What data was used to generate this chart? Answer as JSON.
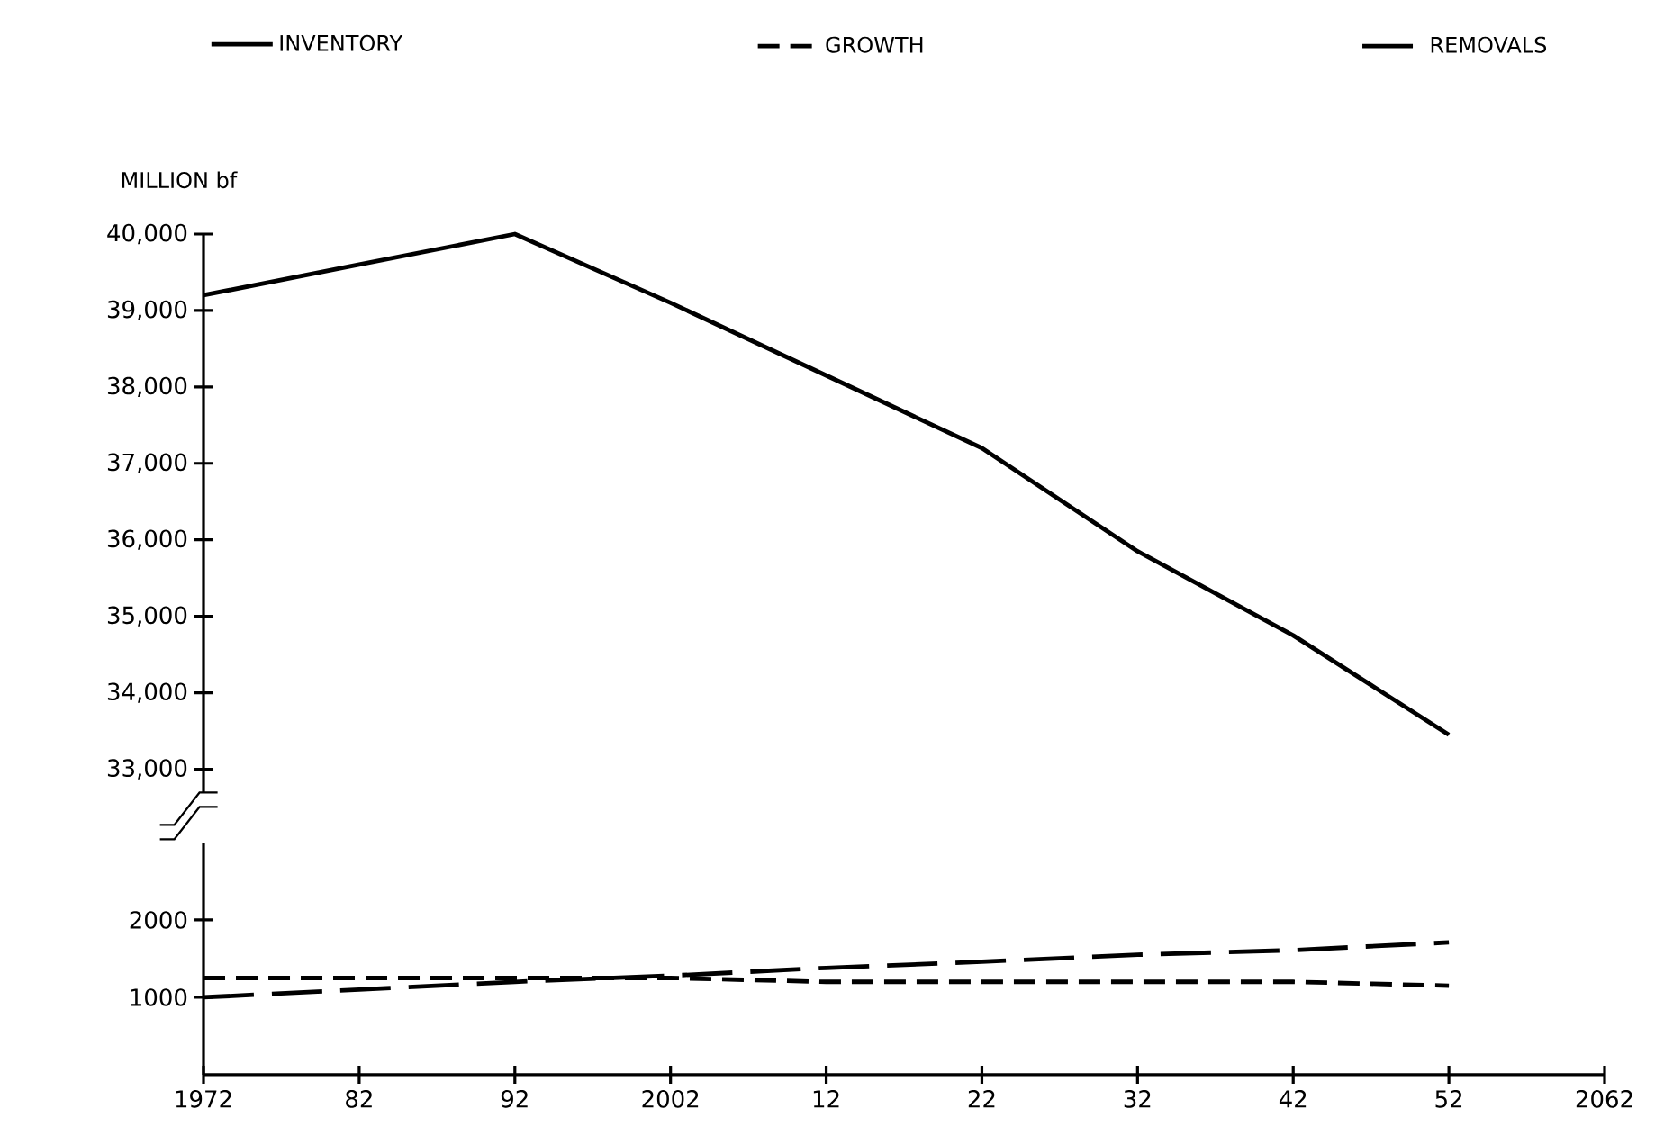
{
  "chart_data": [
    {
      "type": "line",
      "ylabel": "MILLION bf",
      "x": [
        1972,
        1982,
        1992,
        2002,
        2012,
        2022,
        2032,
        2042,
        2052
      ],
      "xlim": [
        1972,
        2062
      ],
      "ylim": [
        32700,
        40000
      ],
      "yticks": [
        {
          "value": 33000,
          "label": "33,000"
        },
        {
          "value": 34000,
          "label": "34,000"
        },
        {
          "value": 35000,
          "label": "35,000"
        },
        {
          "value": 36000,
          "label": "36,000"
        },
        {
          "value": 37000,
          "label": "37,000"
        },
        {
          "value": 38000,
          "label": "38,000"
        },
        {
          "value": 39000,
          "label": "39,000"
        },
        {
          "value": 40000,
          "label": "40,000"
        }
      ],
      "tick_labels": "y",
      "legend": "top",
      "series": [
        {
          "name": "INVENTORY",
          "color": "#000000",
          "line_style": "solid",
          "values": [
            39200,
            39600,
            40000,
            39100,
            38150,
            37200,
            35850,
            34750,
            33450
          ]
        }
      ]
    },
    {
      "type": "line",
      "x": [
        1972,
        1982,
        1992,
        2002,
        2012,
        2022,
        2032,
        2042,
        2052
      ],
      "xlim": [
        1972,
        2062
      ],
      "ylim": [
        0,
        3000
      ],
      "xticks": [
        1972,
        {
          "value": 1982,
          "label": "82"
        },
        {
          "value": 1992,
          "label": "92"
        },
        2002,
        {
          "value": 2012,
          "label": "12"
        },
        {
          "value": 2022,
          "label": "22"
        },
        {
          "value": 2032,
          "label": "32"
        },
        {
          "value": 2042,
          "label": "42"
        },
        {
          "value": 2052,
          "label": "52"
        },
        2062
      ],
      "yticks": [
        1000,
        2000
      ],
      "legend": "top",
      "series": [
        {
          "name": "GROWTH",
          "color": "#000000",
          "line_style": "dashed",
          "values": [
            1250,
            1250,
            1250,
            1250,
            1200,
            1200,
            1200,
            1200,
            1150
          ]
        },
        {
          "name": "REMOVALS",
          "color": "#000000",
          "line_style": "dashed",
          "values": [
            1000,
            1100,
            1200,
            1280,
            1380,
            1460,
            1550,
            1610,
            1710
          ]
        }
      ]
    }
  ]
}
